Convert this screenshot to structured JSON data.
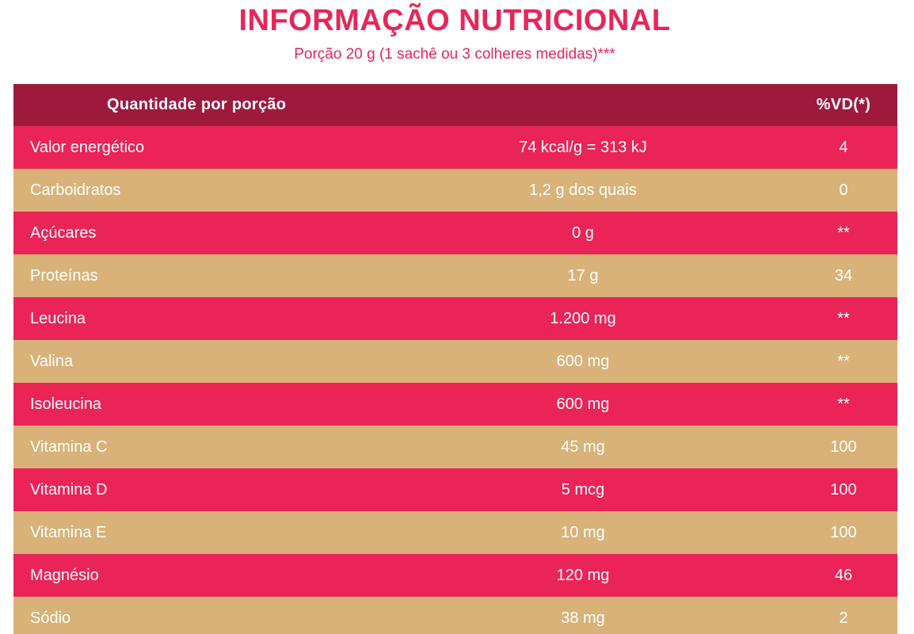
{
  "header": {
    "title": "INFORMAÇÃO NUTRICIONAL",
    "subtitle": "Porção 20 g (1 sachê ou 3 colheres medidas)***"
  },
  "table": {
    "header_quantity": "Quantidade por porção",
    "header_amount": "",
    "header_vd": "%VD(*)",
    "rows": [
      {
        "name": "Valor energético",
        "amount": "74 kcal/g = 313 kJ",
        "vd": "4"
      },
      {
        "name": "Carboidratos",
        "amount": "1,2 g dos quais",
        "vd": "0"
      },
      {
        "name": "Açúcares",
        "amount": "0 g",
        "vd": "**"
      },
      {
        "name": "Proteínas",
        "amount": "17 g",
        "vd": "34"
      },
      {
        "name": "Leucina",
        "amount": "1.200 mg",
        "vd": "**"
      },
      {
        "name": "Valina",
        "amount": "600 mg",
        "vd": "**"
      },
      {
        "name": "Isoleucina",
        "amount": "600 mg",
        "vd": "**"
      },
      {
        "name": "Vitamina C",
        "amount": "45 mg",
        "vd": "100"
      },
      {
        "name": "Vitamina D",
        "amount": "5 mcg",
        "vd": "100"
      },
      {
        "name": "Vitamina E",
        "amount": "10 mg",
        "vd": "100"
      },
      {
        "name": "Magnésio",
        "amount": "120 mg",
        "vd": "46"
      },
      {
        "name": "Sódio",
        "amount": "38 mg",
        "vd": "2"
      }
    ]
  },
  "colors": {
    "title": "#e8265a",
    "header_row": "#9e1a3c",
    "row_pink": "#ea2457",
    "row_tan": "#d8b278",
    "row_text": "#ffffff"
  }
}
